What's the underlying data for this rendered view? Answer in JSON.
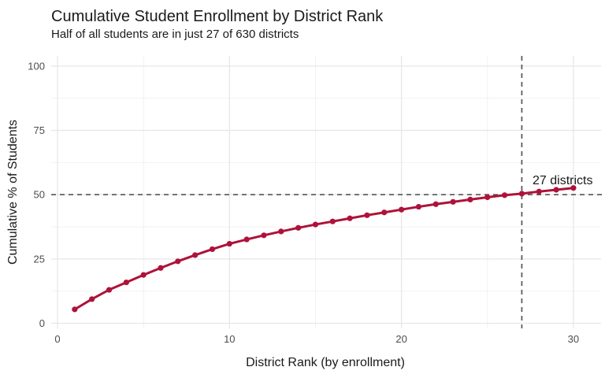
{
  "chart_data": {
    "type": "line",
    "title": "Cumulative Student Enrollment by District Rank",
    "subtitle": "Half of all students are in just 27 of 630 districts",
    "xlabel": "District Rank (by enrollment)",
    "ylabel": "Cumulative % of Students",
    "x": [
      1,
      2,
      3,
      4,
      5,
      6,
      7,
      8,
      9,
      10,
      11,
      12,
      13,
      14,
      15,
      16,
      17,
      18,
      19,
      20,
      21,
      22,
      23,
      24,
      25,
      26,
      27,
      28,
      29,
      30
    ],
    "series": [
      {
        "name": "cumulative_percent_of_students",
        "values": [
          5.4,
          9.4,
          13.0,
          15.9,
          18.8,
          21.5,
          24.1,
          26.5,
          28.8,
          30.9,
          32.6,
          34.2,
          35.7,
          37.1,
          38.4,
          39.6,
          40.8,
          42.0,
          43.1,
          44.2,
          45.3,
          46.3,
          47.2,
          48.1,
          49.0,
          49.8,
          50.4,
          51.2,
          51.9,
          52.6
        ]
      }
    ],
    "xlim": [
      -0.5,
      31.8
    ],
    "ylim": [
      -2,
      104
    ],
    "x_ticks": [
      0,
      10,
      20,
      30
    ],
    "y_ticks": [
      0,
      25,
      50,
      75,
      100
    ],
    "x_minor_ticks": [
      5,
      15,
      25
    ],
    "y_minor_ticks": [
      12.5,
      37.5,
      62.5,
      87.5
    ],
    "reference_lines": {
      "horizontal_y": 50,
      "vertical_x": 27,
      "style": "dashed"
    },
    "annotation": "27 districts",
    "grid": "on",
    "legend": "none"
  },
  "colors": {
    "series_line": "#AE123A",
    "reference_line": "#555555",
    "grid_major": "#E7E7E7",
    "grid_minor": "#F2F2F2",
    "tick_label": "#4D4D4D",
    "text": "#1A1A1A",
    "background": "#FFFFFF"
  }
}
